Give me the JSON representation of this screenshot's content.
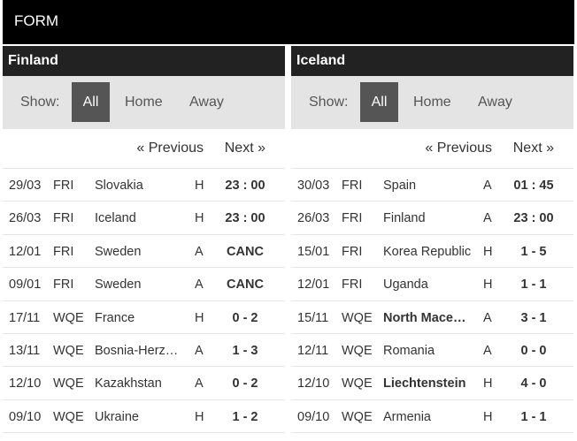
{
  "header": {
    "title": "FORM"
  },
  "panels": [
    {
      "team": "Finland",
      "filters": {
        "show_label": "Show:",
        "all": "All",
        "home": "Home",
        "away": "Away"
      },
      "pager": {
        "previous": "« Previous",
        "next": "Next »"
      },
      "matches": [
        {
          "date": "29/03",
          "comp": "FRI",
          "opponent": "Slovakia",
          "bold": false,
          "ha": "H",
          "result": "23 : 00"
        },
        {
          "date": "26/03",
          "comp": "FRI",
          "opponent": "Iceland",
          "bold": false,
          "ha": "H",
          "result": "23 : 00"
        },
        {
          "date": "12/01",
          "comp": "FRI",
          "opponent": "Sweden",
          "bold": false,
          "ha": "A",
          "result": "CANC"
        },
        {
          "date": "09/01",
          "comp": "FRI",
          "opponent": "Sweden",
          "bold": false,
          "ha": "A",
          "result": "CANC"
        },
        {
          "date": "17/11",
          "comp": "WQE",
          "opponent": "France",
          "bold": false,
          "ha": "H",
          "result": "0 - 2"
        },
        {
          "date": "13/11",
          "comp": "WQE",
          "opponent": "Bosnia-Herzegovina",
          "bold": false,
          "ha": "A",
          "result": "1 - 3"
        },
        {
          "date": "12/10",
          "comp": "WQE",
          "opponent": "Kazakhstan",
          "bold": false,
          "ha": "A",
          "result": "0 - 2"
        },
        {
          "date": "09/10",
          "comp": "WQE",
          "opponent": "Ukraine",
          "bold": false,
          "ha": "H",
          "result": "1 - 2"
        }
      ]
    },
    {
      "team": "Iceland",
      "filters": {
        "show_label": "Show:",
        "all": "All",
        "home": "Home",
        "away": "Away"
      },
      "pager": {
        "previous": "« Previous",
        "next": "Next »"
      },
      "matches": [
        {
          "date": "30/03",
          "comp": "FRI",
          "opponent": "Spain",
          "bold": false,
          "ha": "A",
          "result": "01 : 45"
        },
        {
          "date": "26/03",
          "comp": "FRI",
          "opponent": "Finland",
          "bold": false,
          "ha": "A",
          "result": "23 : 00"
        },
        {
          "date": "15/01",
          "comp": "FRI",
          "opponent": "Korea Republic",
          "bold": false,
          "ha": "H",
          "result": "1 - 5"
        },
        {
          "date": "12/01",
          "comp": "FRI",
          "opponent": "Uganda",
          "bold": false,
          "ha": "H",
          "result": "1 - 1"
        },
        {
          "date": "15/11",
          "comp": "WQE",
          "opponent": "North Macedonia",
          "bold": true,
          "ha": "A",
          "result": "3 - 1"
        },
        {
          "date": "12/11",
          "comp": "WQE",
          "opponent": "Romania",
          "bold": false,
          "ha": "A",
          "result": "0 - 0"
        },
        {
          "date": "12/10",
          "comp": "WQE",
          "opponent": "Liechtenstein",
          "bold": true,
          "ha": "H",
          "result": "4 - 0"
        },
        {
          "date": "09/10",
          "comp": "WQE",
          "opponent": "Armenia",
          "bold": false,
          "ha": "H",
          "result": "1 - 1"
        }
      ]
    }
  ]
}
